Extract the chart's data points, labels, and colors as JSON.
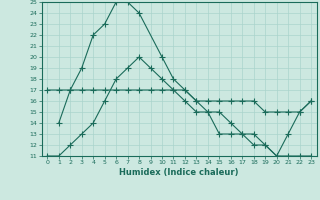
{
  "xlabel": "Humidex (Indice chaleur)",
  "ylabel": "",
  "xlim": [
    -0.5,
    23.5
  ],
  "ylim": [
    11,
    25
  ],
  "yticks": [
    11,
    12,
    13,
    14,
    15,
    16,
    17,
    18,
    19,
    20,
    21,
    22,
    23,
    24,
    25
  ],
  "xticks": [
    0,
    1,
    2,
    3,
    4,
    5,
    6,
    7,
    8,
    9,
    10,
    11,
    12,
    13,
    14,
    15,
    16,
    17,
    18,
    19,
    20,
    21,
    22,
    23
  ],
  "bg_color": "#cce8e0",
  "line_color": "#1a6b5a",
  "grid_color": "#aad4cc",
  "line1_x": [
    1,
    2,
    3,
    4,
    5,
    6,
    7,
    8,
    10,
    11,
    12,
    13,
    14,
    15,
    16,
    17,
    18,
    19,
    20,
    21,
    22,
    23
  ],
  "line1_y": [
    14,
    17,
    19,
    22,
    23,
    25,
    25,
    24,
    20,
    18,
    17,
    16,
    15,
    15,
    14,
    13,
    13,
    12,
    11,
    13,
    15,
    16
  ],
  "line2_x": [
    0,
    1,
    2,
    3,
    4,
    5,
    6,
    7,
    8,
    9,
    10,
    11,
    12,
    13,
    14,
    15,
    16,
    17,
    18,
    19,
    20,
    21,
    22,
    23
  ],
  "line2_y": [
    17,
    17,
    17,
    17,
    17,
    17,
    17,
    17,
    17,
    17,
    17,
    17,
    17,
    16,
    16,
    16,
    16,
    16,
    16,
    15,
    15,
    15,
    15,
    16
  ],
  "line3_x": [
    0,
    1,
    2,
    3,
    4,
    5,
    6,
    7,
    8,
    9,
    10,
    11,
    12,
    13,
    14,
    15,
    16,
    17,
    18,
    19,
    20,
    21,
    22,
    23
  ],
  "line3_y": [
    11,
    11,
    12,
    13,
    14,
    16,
    18,
    19,
    20,
    19,
    18,
    17,
    16,
    15,
    15,
    13,
    13,
    13,
    12,
    12,
    11,
    11,
    11,
    11
  ],
  "marker_style": "+",
  "marker_size": 4,
  "linewidth": 0.8,
  "tick_fontsize": 4.5,
  "xlabel_fontsize": 6
}
